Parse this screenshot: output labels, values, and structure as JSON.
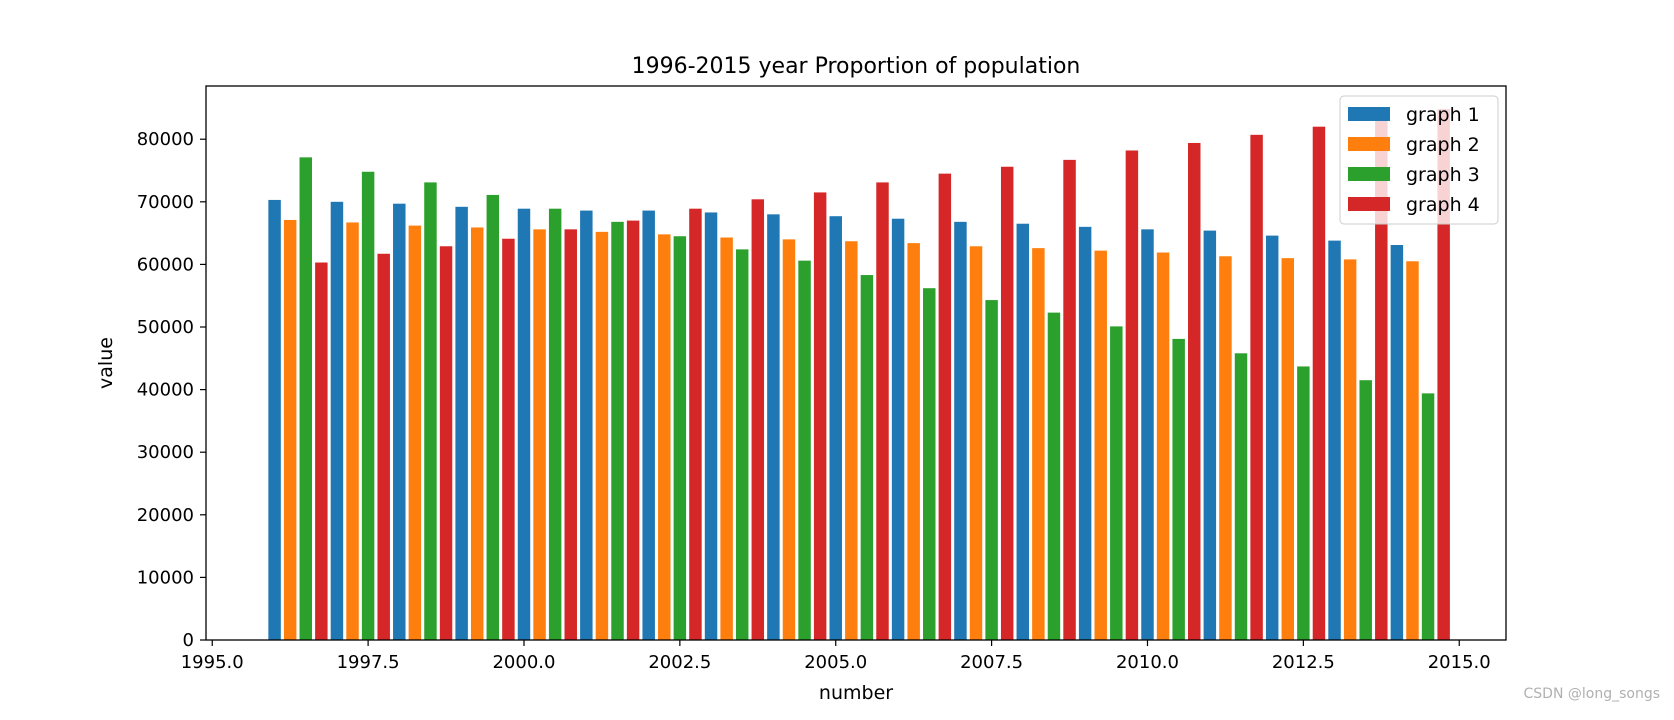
{
  "chart_data": {
    "type": "bar",
    "title": "1996-2015 year Proportion of population",
    "xlabel": "number",
    "ylabel": "value",
    "xlim": [
      1994.9,
      2015.75
    ],
    "ylim": [
      0,
      88500
    ],
    "xticks": [
      1995.0,
      1997.5,
      2000.0,
      2002.5,
      2005.0,
      2007.5,
      2010.0,
      2012.5,
      2015.0
    ],
    "xtick_labels": [
      "1995.0",
      "1997.5",
      "2000.0",
      "2002.5",
      "2005.0",
      "2007.5",
      "2010.0",
      "2012.5",
      "2015.0"
    ],
    "yticks": [
      0,
      10000,
      20000,
      30000,
      40000,
      50000,
      60000,
      70000,
      80000
    ],
    "ytick_labels": [
      "0",
      "10000",
      "20000",
      "30000",
      "40000",
      "50000",
      "60000",
      "70000",
      "80000"
    ],
    "bar_width": 0.2,
    "legend_position": "top-right",
    "grid": false,
    "series": [
      {
        "name": "graph 1",
        "color": "#1f77b4",
        "x": [
          1996,
          1997,
          1998,
          1999,
          2000,
          2001,
          2002,
          2003,
          2004,
          2005,
          2006,
          2007,
          2008,
          2009,
          2010,
          2011,
          2012,
          2013,
          2014
        ],
        "values": [
          70300,
          70000,
          69700,
          69200,
          68900,
          68600,
          68600,
          68300,
          68000,
          67700,
          67300,
          66800,
          66500,
          66000,
          65600,
          65400,
          64600,
          63800,
          63100
        ]
      },
      {
        "name": "graph 2",
        "color": "#ff7f0e",
        "x": [
          1996.25,
          1997.25,
          1998.25,
          1999.25,
          2000.25,
          2001.25,
          2002.25,
          2003.25,
          2004.25,
          2005.25,
          2006.25,
          2007.25,
          2008.25,
          2009.25,
          2010.25,
          2011.25,
          2012.25,
          2013.25,
          2014.25
        ],
        "values": [
          67100,
          66700,
          66200,
          65900,
          65600,
          65200,
          64800,
          64300,
          64000,
          63700,
          63400,
          62900,
          62600,
          62200,
          61900,
          61300,
          61000,
          60800,
          60500
        ]
      },
      {
        "name": "graph 3",
        "color": "#2ca02c",
        "x": [
          1996.5,
          1997.5,
          1998.5,
          1999.5,
          2000.5,
          2001.5,
          2002.5,
          2003.5,
          2004.5,
          2005.5,
          2006.5,
          2007.5,
          2008.5,
          2009.5,
          2010.5,
          2011.5,
          2012.5,
          2013.5,
          2014.5
        ],
        "values": [
          77100,
          74800,
          73100,
          71100,
          68900,
          66800,
          64500,
          62400,
          60600,
          58300,
          56200,
          54300,
          52300,
          50100,
          48100,
          45800,
          43700,
          41500,
          39400
        ]
      },
      {
        "name": "graph 4",
        "color": "#d62728",
        "x": [
          1996.75,
          1997.75,
          1998.75,
          1999.75,
          2000.75,
          2001.75,
          2002.75,
          2003.75,
          2004.75,
          2005.75,
          2006.75,
          2007.75,
          2008.75,
          2009.75,
          2010.75,
          2011.75,
          2012.75,
          2013.75,
          2014.75
        ],
        "values": [
          60300,
          61700,
          62900,
          64100,
          65600,
          67000,
          68900,
          70400,
          71500,
          73100,
          74500,
          75600,
          76700,
          78200,
          79400,
          80700,
          82000,
          83500,
          84800
        ]
      }
    ]
  },
  "watermark": "CSDN @long_songs"
}
